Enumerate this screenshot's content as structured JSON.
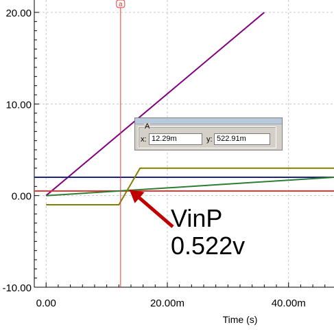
{
  "chart_data": {
    "type": "line",
    "xlabel": "Time (s)",
    "ylabel": "",
    "title": "",
    "xlim": [
      -0.00195,
      0.0475
    ],
    "ylim": [
      -10.0,
      20.0
    ],
    "x_ticks": [
      0,
      0.02,
      0.04
    ],
    "x_tick_labels": [
      "0.00",
      "20.00m",
      "40.00m"
    ],
    "y_ticks": [
      -10,
      0,
      10,
      20
    ],
    "y_tick_labels": [
      "-10.00",
      "0.00",
      "10.00",
      "20.00"
    ],
    "grid": true,
    "series": [
      {
        "color": "#800080",
        "x": [
          0,
          0.036
        ],
        "y": [
          0,
          20
        ]
      },
      {
        "color": "#1a237e",
        "x": [
          -0.00195,
          0.0475
        ],
        "y": [
          2.0,
          2.0
        ]
      },
      {
        "color": "#e53935",
        "x": [
          -0.00195,
          0.0475
        ],
        "y": [
          0.5,
          0.5
        ]
      },
      {
        "color": "#2e7d32",
        "x": [
          0,
          0.0475
        ],
        "y": [
          0,
          2.0
        ]
      },
      {
        "color": "#808000",
        "x": [
          0,
          0.012,
          0.0155,
          0.0475
        ],
        "y": [
          -1.0,
          -1.0,
          3.0,
          3.0
        ]
      }
    ],
    "cursor": {
      "label": "a",
      "x": 0.01229,
      "readout": {
        "title": "A",
        "x_label": "x:",
        "x_value": "12.29m",
        "y_label": "y:",
        "y_value": "522.91m"
      }
    },
    "annotation": {
      "line1": "VinP",
      "line2": "0.522v",
      "arrow_color": "#c00000",
      "target_x": 0.0135,
      "target_y": 0.522
    }
  }
}
